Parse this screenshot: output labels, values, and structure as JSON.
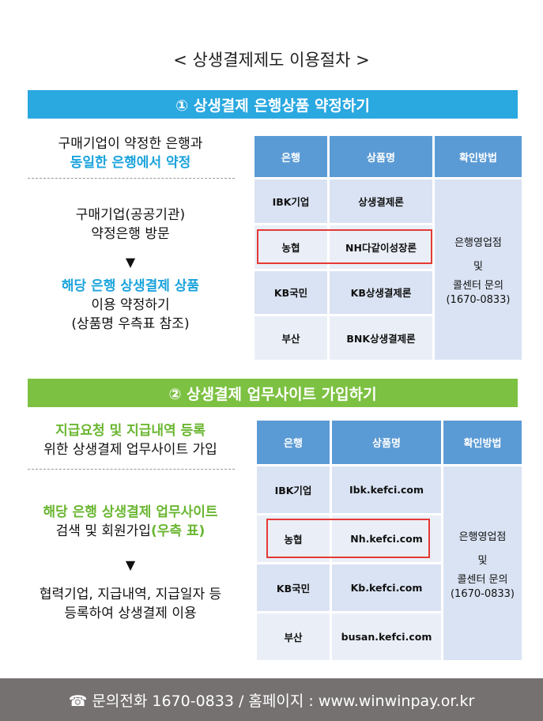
{
  "title": "< 상생결제제도 이용절차 >",
  "colors": {
    "section1": "#2aa8e0",
    "section2": "#7dc142",
    "table_header": "#5b9bd5",
    "highlight": "#e53935",
    "footer": "#767171"
  },
  "section1": {
    "heading": "① 상생결제 은행상품 약정하기",
    "intro": [
      "구매기업이 약정한 은행과",
      "동일한 은행에서 약정"
    ],
    "step1": [
      "구매기업(공공기관)",
      "약정은행 방문"
    ],
    "arrow": "▼",
    "step2": [
      "해당 은행 상생결제 상품",
      "이용 약정하기",
      "(상품명 우측표 참조)"
    ],
    "table": {
      "headers": [
        "은행",
        "상품명",
        "확인방법"
      ],
      "rows": [
        [
          "IBK기업",
          "상생결제론"
        ],
        [
          "농협",
          "NH다같이성장론"
        ],
        [
          "KB국민",
          "KB상생결제론"
        ],
        [
          "부산",
          "BNK상생결제론"
        ]
      ],
      "method": [
        "은행영업점",
        "및",
        "콜센터 문의",
        "(1670-0833)"
      ],
      "highlighted_row": 1
    }
  },
  "section2": {
    "heading": "② 상생결제 업무사이트 가입하기",
    "intro": [
      "지급요청 및 지급내역 등록",
      "위한 상생결제 업무사이트 가입"
    ],
    "step1": [
      "해당 은행 상생결제 업무사이트",
      "검색 및 회원가입",
      "(우측 표)"
    ],
    "arrow": "▼",
    "step2": [
      "협력기업, 지급내역, 지급일자 등",
      "등록하여 상생결제 이용"
    ],
    "table": {
      "headers": [
        "은행",
        "상품명",
        "확인방법"
      ],
      "rows": [
        [
          "IBK기업",
          "Ibk.kefci.com"
        ],
        [
          "농협",
          "Nh.kefci.com"
        ],
        [
          "KB국민",
          "Kb.kefci.com"
        ],
        [
          "부산",
          "busan.kefci.com"
        ]
      ],
      "method": [
        "은행영업점",
        "및",
        "콜센터 문의",
        "(1670-0833)"
      ],
      "highlighted_row": 1
    }
  },
  "footer": {
    "icon": "phone-icon",
    "text": "☎ 문의전화 1670-0833 / 홈페이지 : www.winwinpay.or.kr"
  }
}
